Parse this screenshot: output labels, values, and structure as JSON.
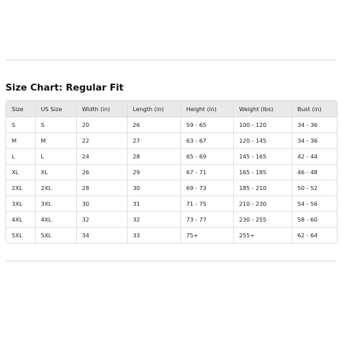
{
  "title": "Size Chart: Regular Fit",
  "table": {
    "headers": [
      "Size",
      "US Size",
      "Width (in)",
      "Length (in)",
      "Height (in)",
      "Weight (lbs)",
      "Bust (in)"
    ],
    "rows": [
      [
        "S",
        "S",
        "20",
        "26",
        "59 - 65",
        "100 - 120",
        "34 - 36"
      ],
      [
        "M",
        "M",
        "22",
        "27",
        "63 - 67",
        "120 - 145",
        "34 - 36"
      ],
      [
        "L",
        "L",
        "24",
        "28",
        "65 - 69",
        "145 - 165",
        "42 - 44"
      ],
      [
        "XL",
        "XL",
        "26",
        "29",
        "67 - 71",
        "165 - 185",
        "46 - 48"
      ],
      [
        "2XL",
        "2XL",
        "28",
        "30",
        "69 - 73",
        "185 - 210",
        "50 - 52"
      ],
      [
        "3XL",
        "3XL",
        "30",
        "31",
        "71 - 75",
        "210 - 230",
        "54 - 56"
      ],
      [
        "4XL",
        "4XL",
        "32",
        "32",
        "73 - 77",
        "230 - 255",
        "58 - 60"
      ],
      [
        "5XL",
        "5XL",
        "34",
        "33",
        "75+",
        "255+",
        "62 - 64"
      ]
    ]
  },
  "colors": {
    "header_background": "#e9e9e9",
    "border": "#dedede",
    "divider": "#d4d4d4"
  }
}
